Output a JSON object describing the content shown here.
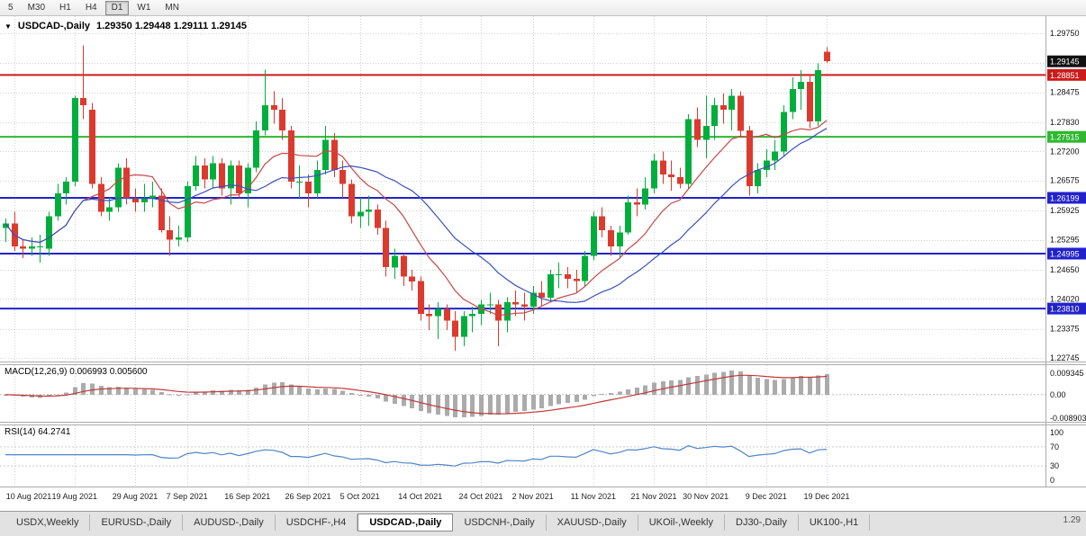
{
  "toolbar": {
    "timeframes": [
      "5",
      "M30",
      "H1",
      "H4",
      "D1",
      "W1",
      "MN"
    ],
    "active": "D1"
  },
  "chart_header": {
    "symbol": "USDCAD-,Daily",
    "ohlc": "1.29350 1.29448 1.29111 1.29145"
  },
  "price_axis": {
    "labeled_values": [
      1.2975,
      1.28475,
      1.2783,
      1.272,
      1.26575,
      1.25925,
      1.25295,
      1.2465,
      1.2402,
      1.23375,
      1.22745
    ],
    "grid_values": [
      1.2975,
      1.2911,
      1.28475,
      1.2783,
      1.272,
      1.26575,
      1.25925,
      1.25295,
      1.2465,
      1.2402,
      1.23375,
      1.22745
    ],
    "badges": [
      {
        "text": "1.29145",
        "price": 1.29145,
        "color": "#111111",
        "role": "current-price"
      },
      {
        "text": "1.28851",
        "price": 1.28851,
        "color": "#cc1a1a",
        "role": "resistance-level"
      },
      {
        "text": "1.27515",
        "price": 1.27515,
        "color": "#2eb82e",
        "role": "support-level"
      },
      {
        "text": "1.26199",
        "price": 1.26199,
        "color": "#2222cc",
        "role": "support-level"
      },
      {
        "text": "1.24995",
        "price": 1.24995,
        "color": "#2222cc",
        "role": "support-level"
      },
      {
        "text": "1.23810",
        "price": 1.2381,
        "color": "#2222cc",
        "role": "support-level"
      }
    ]
  },
  "macd": {
    "label": "MACD(12,26,9) 0.006993 0.005600",
    "axis_labels": [
      "0.009345",
      "0.00",
      "-0.008903"
    ],
    "histogram_color": "#ababab",
    "signal_color": "#c03a3a"
  },
  "rsi": {
    "label": "RSI(14) 64.2741",
    "axis_labels": [
      100,
      70,
      30,
      0
    ],
    "levels": [
      70,
      30
    ],
    "line_color": "#4f86c6"
  },
  "tabbar": {
    "tabs": [
      "USDX,Weekly",
      "EURUSD-,Daily",
      "AUDUSD-,Daily",
      "USDCHF-,H4",
      "USDCAD-,Daily",
      "USDCNH-,Daily",
      "XAUUSD-,Daily",
      "UKOil-,Weekly",
      "DJ30-,Daily",
      "UK100-,H1"
    ],
    "active": "USDCAD-,Daily",
    "corner_text": "1.29"
  },
  "chart_data": {
    "type": "candlestick",
    "title": "USDCAD-,Daily",
    "price_range": [
      1.22745,
      1.2975
    ],
    "candle_colors": {
      "bull": "#00ae3c",
      "bear": "#dc3a2e"
    },
    "levels": [
      {
        "price": 1.28851,
        "color": "#cc1a1a"
      },
      {
        "price": 1.27515,
        "color": "#2eb82e"
      },
      {
        "price": 1.26199,
        "color": "#2222cc"
      },
      {
        "price": 1.24995,
        "color": "#2222cc"
      },
      {
        "price": 1.2381,
        "color": "#2222cc"
      }
    ],
    "moving_averages": [
      {
        "name": "SMA(10)",
        "period": 10,
        "color": "#c84646"
      },
      {
        "name": "SMA(20)",
        "period": 20,
        "color": "#3a50c0"
      }
    ],
    "x_labels": [
      {
        "label": "10 Aug 2021",
        "candle": 1
      },
      {
        "label": "19 Aug 2021",
        "candle": 8
      },
      {
        "label": "29 Aug 2021",
        "candle": 15
      },
      {
        "label": "7 Sep 2021",
        "candle": 21
      },
      {
        "label": "16 Sep 2021",
        "candle": 28
      },
      {
        "label": "26 Sep 2021",
        "candle": 35
      },
      {
        "label": "5 Oct 2021",
        "candle": 41
      },
      {
        "label": "14 Oct 2021",
        "candle": 48
      },
      {
        "label": "24 Oct 2021",
        "candle": 55
      },
      {
        "label": "2 Nov 2021",
        "candle": 61
      },
      {
        "label": "11 Nov 2021",
        "candle": 68
      },
      {
        "label": "21 Nov 2021",
        "candle": 75
      },
      {
        "label": "30 Nov 2021",
        "candle": 81
      },
      {
        "label": "9 Dec 2021",
        "candle": 88
      },
      {
        "label": "19 Dec 2021",
        "candle": 95
      }
    ],
    "candles": [
      [
        1.2555,
        1.2575,
        1.2525,
        1.2565
      ],
      [
        1.2565,
        1.259,
        1.2505,
        1.2515
      ],
      [
        1.2515,
        1.253,
        1.249,
        1.251
      ],
      [
        1.251,
        1.2535,
        1.2495,
        1.2515
      ],
      [
        1.2515,
        1.254,
        1.248,
        1.2515
      ],
      [
        1.251,
        1.259,
        1.2495,
        1.258
      ],
      [
        1.258,
        1.265,
        1.257,
        1.263
      ],
      [
        1.263,
        1.2665,
        1.2605,
        1.2655
      ],
      [
        1.2655,
        1.284,
        1.2645,
        1.2835
      ],
      [
        1.2835,
        1.2949,
        1.279,
        1.282
      ],
      [
        1.281,
        1.2825,
        1.264,
        1.265
      ],
      [
        1.265,
        1.2665,
        1.258,
        1.259
      ],
      [
        1.259,
        1.262,
        1.257,
        1.26
      ],
      [
        1.26,
        1.2695,
        1.259,
        1.2685
      ],
      [
        1.2685,
        1.2705,
        1.2605,
        1.262
      ],
      [
        1.262,
        1.264,
        1.259,
        1.261
      ],
      [
        1.261,
        1.265,
        1.259,
        1.262
      ],
      [
        1.262,
        1.2655,
        1.26,
        1.2625
      ],
      [
        1.2625,
        1.264,
        1.2545,
        1.255
      ],
      [
        1.255,
        1.258,
        1.2495,
        1.253
      ],
      [
        1.253,
        1.256,
        1.2515,
        1.2535
      ],
      [
        1.2535,
        1.2655,
        1.2525,
        1.2645
      ],
      [
        1.2645,
        1.271,
        1.2635,
        1.269
      ],
      [
        1.269,
        1.2705,
        1.264,
        1.266
      ],
      [
        1.266,
        1.271,
        1.264,
        1.2695
      ],
      [
        1.2695,
        1.2705,
        1.2625,
        1.264
      ],
      [
        1.264,
        1.27,
        1.2605,
        1.269
      ],
      [
        1.269,
        1.27,
        1.262,
        1.263
      ],
      [
        1.263,
        1.2695,
        1.26,
        1.2685
      ],
      [
        1.2685,
        1.2785,
        1.2675,
        1.2765
      ],
      [
        1.2765,
        1.2896,
        1.2755,
        1.282
      ],
      [
        1.282,
        1.285,
        1.278,
        1.281
      ],
      [
        1.281,
        1.2835,
        1.2745,
        1.2765
      ],
      [
        1.2765,
        1.2775,
        1.264,
        1.2655
      ],
      [
        1.2655,
        1.269,
        1.262,
        1.2655
      ],
      [
        1.2655,
        1.267,
        1.26,
        1.263
      ],
      [
        1.263,
        1.27,
        1.262,
        1.268
      ],
      [
        1.268,
        1.2775,
        1.267,
        1.2745
      ],
      [
        1.2745,
        1.276,
        1.2665,
        1.268
      ],
      [
        1.268,
        1.27,
        1.262,
        1.265
      ],
      [
        1.265,
        1.266,
        1.2565,
        1.258
      ],
      [
        1.258,
        1.262,
        1.2555,
        1.259
      ],
      [
        1.259,
        1.2625,
        1.256,
        1.2595
      ],
      [
        1.2595,
        1.2605,
        1.254,
        1.2555
      ],
      [
        1.2555,
        1.257,
        1.245,
        1.247
      ],
      [
        1.247,
        1.251,
        1.2445,
        1.2495
      ],
      [
        1.2495,
        1.25,
        1.243,
        1.245
      ],
      [
        1.245,
        1.2465,
        1.242,
        1.244
      ],
      [
        1.244,
        1.245,
        1.2355,
        1.237
      ],
      [
        1.237,
        1.239,
        1.2335,
        1.2365
      ],
      [
        1.2365,
        1.2395,
        1.2315,
        1.238
      ],
      [
        1.238,
        1.239,
        1.2335,
        1.2355
      ],
      [
        1.2355,
        1.2375,
        1.229,
        1.232
      ],
      [
        1.232,
        1.2375,
        1.23,
        1.2365
      ],
      [
        1.2365,
        1.2385,
        1.233,
        1.237
      ],
      [
        1.237,
        1.24,
        1.2345,
        1.239
      ],
      [
        1.239,
        1.2415,
        1.237,
        1.239
      ],
      [
        1.239,
        1.24,
        1.23,
        1.2355
      ],
      [
        1.2355,
        1.2405,
        1.233,
        1.2395
      ],
      [
        1.2395,
        1.242,
        1.2365,
        1.239
      ],
      [
        1.239,
        1.2415,
        1.2355,
        1.2385
      ],
      [
        1.2385,
        1.243,
        1.237,
        1.2415
      ],
      [
        1.2415,
        1.244,
        1.2385,
        1.2405
      ],
      [
        1.2405,
        1.2465,
        1.2395,
        1.2455
      ],
      [
        1.2455,
        1.248,
        1.2425,
        1.2455
      ],
      [
        1.2455,
        1.247,
        1.2425,
        1.2445
      ],
      [
        1.2445,
        1.2465,
        1.2415,
        1.244
      ],
      [
        1.244,
        1.2505,
        1.243,
        1.2495
      ],
      [
        1.2495,
        1.259,
        1.2485,
        1.258
      ],
      [
        1.258,
        1.26,
        1.2535,
        1.255
      ],
      [
        1.255,
        1.256,
        1.2495,
        1.2515
      ],
      [
        1.2515,
        1.256,
        1.249,
        1.2545
      ],
      [
        1.2545,
        1.2625,
        1.254,
        1.261
      ],
      [
        1.261,
        1.264,
        1.258,
        1.2605
      ],
      [
        1.2605,
        1.2665,
        1.2595,
        1.264
      ],
      [
        1.264,
        1.2715,
        1.263,
        1.27
      ],
      [
        1.27,
        1.272,
        1.265,
        1.267
      ],
      [
        1.267,
        1.27,
        1.2635,
        1.2665
      ],
      [
        1.2665,
        1.2685,
        1.264,
        1.265
      ],
      [
        1.265,
        1.28,
        1.264,
        1.279
      ],
      [
        1.279,
        1.2815,
        1.273,
        1.2745
      ],
      [
        1.2745,
        1.284,
        1.2705,
        1.2775
      ],
      [
        1.2775,
        1.2835,
        1.2745,
        1.282
      ],
      [
        1.282,
        1.2845,
        1.278,
        1.281
      ],
      [
        1.281,
        1.2855,
        1.2765,
        1.284
      ],
      [
        1.284,
        1.285,
        1.275,
        1.2765
      ],
      [
        1.2765,
        1.2775,
        1.2625,
        1.2645
      ],
      [
        1.2645,
        1.2695,
        1.263,
        1.268
      ],
      [
        1.268,
        1.2725,
        1.2665,
        1.27
      ],
      [
        1.27,
        1.2745,
        1.268,
        1.272
      ],
      [
        1.272,
        1.282,
        1.271,
        1.2805
      ],
      [
        1.2805,
        1.288,
        1.279,
        1.2855
      ],
      [
        1.2855,
        1.2895,
        1.281,
        1.287
      ],
      [
        1.287,
        1.2885,
        1.277,
        1.2785
      ],
      [
        1.2785,
        1.291,
        1.2775,
        1.2895
      ],
      [
        1.2935,
        1.29448,
        1.29111,
        1.29145
      ]
    ]
  }
}
